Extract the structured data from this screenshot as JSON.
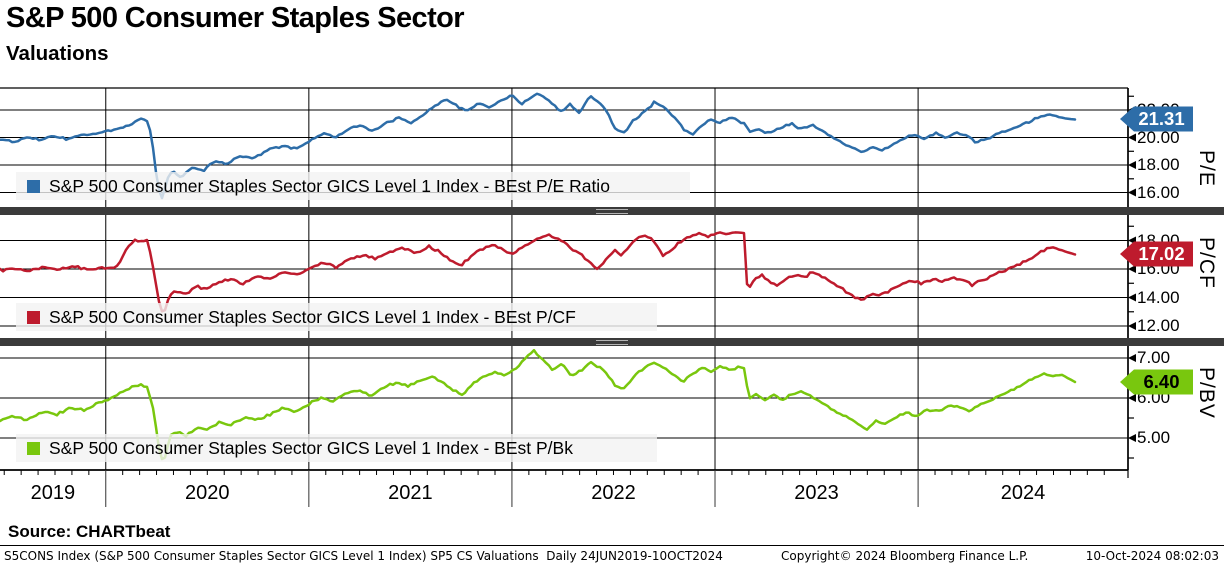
{
  "header": {
    "title": "S&P 500 Consumer Staples Sector",
    "subtitle": "Valuations"
  },
  "source_label": "Source: CHARTbeat",
  "footer": {
    "left": "S5CONS Index (S&P 500 Consumer Staples Sector GICS Level 1 Index) SP5 CS Valuations  Daily 24JUN2019-10OCT2024",
    "center": "Copyright© 2024 Bloomberg Finance L.P.",
    "right": "10-Oct-2024 08:02:03"
  },
  "x_axis": {
    "year_labels": [
      "2019",
      "2020",
      "2021",
      "2022",
      "2023",
      "2024"
    ],
    "start_date": "24JUN2019",
    "end_date": "10OCT2024",
    "frequency": "Daily"
  },
  "chart_data": [
    {
      "type": "line",
      "axis_label": "P/E",
      "legend": "S&P 500 Consumer Staples Sector GICS Level 1 Index - BEst P/E Ratio",
      "series_name": "BEst P/E Ratio",
      "color": "#2d6da8",
      "last_value": 21.31,
      "last_value_label": "21.31",
      "ylim": [
        14.95,
        23.6
      ],
      "yticks_labeled": [
        16,
        18,
        20,
        22
      ],
      "yticks_minor": [
        15,
        17,
        19,
        21,
        23
      ],
      "points": [
        [
          0.0,
          19.9
        ],
        [
          0.012,
          19.7
        ],
        [
          0.024,
          20.0
        ],
        [
          0.036,
          19.85
        ],
        [
          0.05,
          20.1
        ],
        [
          0.062,
          19.9
        ],
        [
          0.075,
          20.2
        ],
        [
          0.088,
          20.3
        ],
        [
          0.1,
          20.45
        ],
        [
          0.112,
          20.65
        ],
        [
          0.122,
          20.95
        ],
        [
          0.131,
          21.4
        ],
        [
          0.137,
          21.15
        ],
        [
          0.141,
          20.2
        ],
        [
          0.146,
          16.8
        ],
        [
          0.15,
          15.35
        ],
        [
          0.155,
          16.9
        ],
        [
          0.161,
          17.6
        ],
        [
          0.169,
          17.1
        ],
        [
          0.179,
          17.9
        ],
        [
          0.189,
          17.6
        ],
        [
          0.2,
          18.3
        ],
        [
          0.211,
          18.1
        ],
        [
          0.223,
          18.7
        ],
        [
          0.236,
          18.5
        ],
        [
          0.25,
          19.1
        ],
        [
          0.263,
          19.4
        ],
        [
          0.276,
          19.2
        ],
        [
          0.289,
          19.85
        ],
        [
          0.301,
          20.3
        ],
        [
          0.312,
          20.0
        ],
        [
          0.324,
          20.6
        ],
        [
          0.336,
          20.9
        ],
        [
          0.347,
          20.45
        ],
        [
          0.359,
          21.0
        ],
        [
          0.371,
          21.4
        ],
        [
          0.382,
          21.05
        ],
        [
          0.394,
          21.7
        ],
        [
          0.405,
          22.3
        ],
        [
          0.415,
          22.75
        ],
        [
          0.424,
          22.35
        ],
        [
          0.434,
          21.95
        ],
        [
          0.445,
          22.5
        ],
        [
          0.456,
          22.15
        ],
        [
          0.467,
          22.8
        ],
        [
          0.476,
          23.05
        ],
        [
          0.485,
          22.4
        ],
        [
          0.494,
          22.95
        ],
        [
          0.502,
          23.2
        ],
        [
          0.512,
          22.55
        ],
        [
          0.521,
          21.9
        ],
        [
          0.53,
          22.4
        ],
        [
          0.539,
          21.75
        ],
        [
          0.548,
          23.0
        ],
        [
          0.556,
          22.6
        ],
        [
          0.565,
          21.9
        ],
        [
          0.572,
          20.6
        ],
        [
          0.58,
          20.3
        ],
        [
          0.59,
          21.3
        ],
        [
          0.6,
          21.9
        ],
        [
          0.609,
          22.6
        ],
        [
          0.619,
          22.1
        ],
        [
          0.628,
          21.4
        ],
        [
          0.636,
          20.6
        ],
        [
          0.644,
          20.25
        ],
        [
          0.652,
          20.8
        ],
        [
          0.661,
          21.3
        ],
        [
          0.67,
          21.1
        ],
        [
          0.679,
          21.5
        ],
        [
          0.688,
          21.2
        ],
        [
          0.6935,
          21.0
        ],
        [
          0.697,
          20.4
        ],
        [
          0.706,
          20.6
        ],
        [
          0.716,
          20.3
        ],
        [
          0.726,
          20.7
        ],
        [
          0.736,
          21.0
        ],
        [
          0.746,
          20.6
        ],
        [
          0.756,
          20.9
        ],
        [
          0.765,
          20.45
        ],
        [
          0.774,
          20.0
        ],
        [
          0.784,
          19.6
        ],
        [
          0.793,
          19.3
        ],
        [
          0.802,
          18.95
        ],
        [
          0.811,
          19.3
        ],
        [
          0.82,
          19.05
        ],
        [
          0.83,
          19.5
        ],
        [
          0.84,
          19.9
        ],
        [
          0.85,
          20.2
        ],
        [
          0.86,
          19.9
        ],
        [
          0.87,
          20.3
        ],
        [
          0.88,
          20.0
        ],
        [
          0.89,
          20.4
        ],
        [
          0.9,
          20.1
        ],
        [
          0.908,
          19.65
        ],
        [
          0.917,
          19.85
        ],
        [
          0.926,
          20.2
        ],
        [
          0.936,
          20.5
        ],
        [
          0.946,
          20.8
        ],
        [
          0.956,
          21.1
        ],
        [
          0.966,
          21.5
        ],
        [
          0.976,
          21.7
        ],
        [
          0.986,
          21.45
        ],
        [
          1.0,
          21.31
        ]
      ]
    },
    {
      "type": "line",
      "axis_label": "P/CF",
      "legend": "S&P 500 Consumer Staples Sector GICS Level 1 Index - BEst P/CF",
      "series_name": "BEst P/CF",
      "color": "#be1b2d",
      "last_value": 17.02,
      "last_value_label": "17.02",
      "ylim": [
        11.16,
        19.79
      ],
      "yticks_labeled": [
        12,
        14,
        16,
        18
      ],
      "yticks_minor": [
        13,
        15,
        17,
        19
      ],
      "points": [
        [
          0.0,
          15.9
        ],
        [
          0.012,
          16.05
        ],
        [
          0.025,
          15.85
        ],
        [
          0.04,
          16.15
        ],
        [
          0.055,
          16.0
        ],
        [
          0.07,
          16.2
        ],
        [
          0.082,
          15.95
        ],
        [
          0.093,
          16.1
        ],
        [
          0.102,
          16.0
        ],
        [
          0.11,
          16.25
        ],
        [
          0.118,
          17.4
        ],
        [
          0.126,
          18.1
        ],
        [
          0.132,
          17.9
        ],
        [
          0.137,
          18.1
        ],
        [
          0.142,
          16.3
        ],
        [
          0.148,
          13.6
        ],
        [
          0.152,
          12.65
        ],
        [
          0.158,
          14.2
        ],
        [
          0.165,
          14.45
        ],
        [
          0.172,
          14.2
        ],
        [
          0.182,
          14.8
        ],
        [
          0.192,
          14.6
        ],
        [
          0.203,
          15.1
        ],
        [
          0.214,
          15.3
        ],
        [
          0.226,
          15.0
        ],
        [
          0.238,
          15.5
        ],
        [
          0.251,
          15.3
        ],
        [
          0.264,
          15.8
        ],
        [
          0.277,
          15.6
        ],
        [
          0.289,
          16.1
        ],
        [
          0.301,
          16.4
        ],
        [
          0.313,
          16.1
        ],
        [
          0.326,
          16.7
        ],
        [
          0.338,
          17.0
        ],
        [
          0.35,
          16.7
        ],
        [
          0.362,
          17.2
        ],
        [
          0.375,
          17.5
        ],
        [
          0.387,
          17.15
        ],
        [
          0.399,
          17.6
        ],
        [
          0.409,
          17.2
        ],
        [
          0.419,
          16.6
        ],
        [
          0.428,
          16.25
        ],
        [
          0.438,
          16.9
        ],
        [
          0.448,
          17.4
        ],
        [
          0.458,
          17.7
        ],
        [
          0.467,
          17.4
        ],
        [
          0.476,
          17.05
        ],
        [
          0.485,
          17.5
        ],
        [
          0.494,
          17.85
        ],
        [
          0.503,
          18.2
        ],
        [
          0.511,
          18.4
        ],
        [
          0.52,
          18.05
        ],
        [
          0.529,
          17.6
        ],
        [
          0.538,
          17.15
        ],
        [
          0.547,
          16.55
        ],
        [
          0.556,
          15.95
        ],
        [
          0.564,
          16.7
        ],
        [
          0.572,
          17.3
        ],
        [
          0.578,
          16.95
        ],
        [
          0.585,
          17.6
        ],
        [
          0.592,
          18.1
        ],
        [
          0.6,
          18.35
        ],
        [
          0.608,
          18.0
        ],
        [
          0.617,
          16.95
        ],
        [
          0.625,
          17.4
        ],
        [
          0.633,
          17.9
        ],
        [
          0.641,
          18.3
        ],
        [
          0.65,
          18.45
        ],
        [
          0.659,
          18.3
        ],
        [
          0.668,
          18.55
        ],
        [
          0.677,
          18.45
        ],
        [
          0.686,
          18.6
        ],
        [
          0.6935,
          18.55
        ],
        [
          0.695,
          14.55
        ],
        [
          0.702,
          15.25
        ],
        [
          0.709,
          15.55
        ],
        [
          0.716,
          15.1
        ],
        [
          0.723,
          14.85
        ],
        [
          0.731,
          15.3
        ],
        [
          0.74,
          15.6
        ],
        [
          0.748,
          15.4
        ],
        [
          0.756,
          15.8
        ],
        [
          0.764,
          15.55
        ],
        [
          0.772,
          15.15
        ],
        [
          0.78,
          14.75
        ],
        [
          0.788,
          14.4
        ],
        [
          0.796,
          14.0
        ],
        [
          0.803,
          13.8
        ],
        [
          0.81,
          14.25
        ],
        [
          0.818,
          14.05
        ],
        [
          0.827,
          14.5
        ],
        [
          0.837,
          14.9
        ],
        [
          0.847,
          15.2
        ],
        [
          0.857,
          15.0
        ],
        [
          0.867,
          15.3
        ],
        [
          0.877,
          15.1
        ],
        [
          0.887,
          15.4
        ],
        [
          0.896,
          15.2
        ],
        [
          0.904,
          14.9
        ],
        [
          0.912,
          15.15
        ],
        [
          0.921,
          15.5
        ],
        [
          0.931,
          15.8
        ],
        [
          0.941,
          16.1
        ],
        [
          0.951,
          16.45
        ],
        [
          0.961,
          16.85
        ],
        [
          0.971,
          17.3
        ],
        [
          0.979,
          17.55
        ],
        [
          0.988,
          17.3
        ],
        [
          1.0,
          17.02
        ]
      ]
    },
    {
      "type": "line",
      "axis_label": "P/BV",
      "legend": "S&P 500 Consumer Staples Sector GICS Level 1 Index - BEst P/Bk",
      "series_name": "BEst P/Bk",
      "color": "#79c70e",
      "last_value": 6.4,
      "last_value_label": "6.40",
      "ylim": [
        4.2,
        7.3
      ],
      "yticks_labeled": [
        5,
        6,
        7
      ],
      "yticks_minor": [
        4.5,
        5.5,
        6.5
      ],
      "points": [
        [
          0.0,
          5.45
        ],
        [
          0.012,
          5.55
        ],
        [
          0.025,
          5.45
        ],
        [
          0.04,
          5.65
        ],
        [
          0.052,
          5.58
        ],
        [
          0.065,
          5.75
        ],
        [
          0.078,
          5.7
        ],
        [
          0.09,
          5.85
        ],
        [
          0.1,
          5.95
        ],
        [
          0.11,
          6.1
        ],
        [
          0.121,
          6.25
        ],
        [
          0.13,
          6.35
        ],
        [
          0.137,
          6.28
        ],
        [
          0.142,
          5.8
        ],
        [
          0.148,
          4.75
        ],
        [
          0.152,
          4.35
        ],
        [
          0.158,
          5.05
        ],
        [
          0.165,
          5.15
        ],
        [
          0.173,
          5.05
        ],
        [
          0.183,
          5.25
        ],
        [
          0.193,
          5.2
        ],
        [
          0.204,
          5.4
        ],
        [
          0.215,
          5.35
        ],
        [
          0.227,
          5.5
        ],
        [
          0.239,
          5.45
        ],
        [
          0.252,
          5.6
        ],
        [
          0.264,
          5.75
        ],
        [
          0.275,
          5.65
        ],
        [
          0.287,
          5.85
        ],
        [
          0.299,
          6.0
        ],
        [
          0.31,
          5.9
        ],
        [
          0.322,
          6.1
        ],
        [
          0.334,
          6.2
        ],
        [
          0.345,
          6.05
        ],
        [
          0.357,
          6.25
        ],
        [
          0.369,
          6.4
        ],
        [
          0.38,
          6.3
        ],
        [
          0.392,
          6.45
        ],
        [
          0.402,
          6.55
        ],
        [
          0.412,
          6.4
        ],
        [
          0.421,
          6.2
        ],
        [
          0.43,
          6.1
        ],
        [
          0.44,
          6.35
        ],
        [
          0.45,
          6.55
        ],
        [
          0.46,
          6.65
        ],
        [
          0.47,
          6.55
        ],
        [
          0.48,
          6.75
        ],
        [
          0.489,
          7.0
        ],
        [
          0.496,
          7.2
        ],
        [
          0.505,
          6.95
        ],
        [
          0.514,
          6.7
        ],
        [
          0.523,
          6.85
        ],
        [
          0.532,
          6.55
        ],
        [
          0.541,
          6.7
        ],
        [
          0.55,
          6.9
        ],
        [
          0.558,
          6.75
        ],
        [
          0.566,
          6.55
        ],
        [
          0.573,
          6.3
        ],
        [
          0.581,
          6.25
        ],
        [
          0.59,
          6.55
        ],
        [
          0.599,
          6.75
        ],
        [
          0.608,
          6.9
        ],
        [
          0.618,
          6.75
        ],
        [
          0.627,
          6.55
        ],
        [
          0.635,
          6.4
        ],
        [
          0.644,
          6.6
        ],
        [
          0.653,
          6.75
        ],
        [
          0.662,
          6.65
        ],
        [
          0.671,
          6.8
        ],
        [
          0.68,
          6.7
        ],
        [
          0.688,
          6.78
        ],
        [
          0.6935,
          6.72
        ],
        [
          0.696,
          5.95
        ],
        [
          0.703,
          6.1
        ],
        [
          0.711,
          5.95
        ],
        [
          0.719,
          6.08
        ],
        [
          0.728,
          5.95
        ],
        [
          0.737,
          6.1
        ],
        [
          0.746,
          6.18
        ],
        [
          0.754,
          6.05
        ],
        [
          0.762,
          5.92
        ],
        [
          0.771,
          5.78
        ],
        [
          0.78,
          5.62
        ],
        [
          0.79,
          5.5
        ],
        [
          0.799,
          5.32
        ],
        [
          0.806,
          5.2
        ],
        [
          0.814,
          5.42
        ],
        [
          0.823,
          5.36
        ],
        [
          0.833,
          5.52
        ],
        [
          0.843,
          5.62
        ],
        [
          0.853,
          5.56
        ],
        [
          0.863,
          5.72
        ],
        [
          0.873,
          5.66
        ],
        [
          0.883,
          5.82
        ],
        [
          0.893,
          5.76
        ],
        [
          0.902,
          5.68
        ],
        [
          0.911,
          5.82
        ],
        [
          0.92,
          5.92
        ],
        [
          0.93,
          6.05
        ],
        [
          0.94,
          6.18
        ],
        [
          0.95,
          6.32
        ],
        [
          0.96,
          6.48
        ],
        [
          0.97,
          6.62
        ],
        [
          0.979,
          6.55
        ],
        [
          0.988,
          6.58
        ],
        [
          1.0,
          6.4
        ]
      ]
    }
  ]
}
